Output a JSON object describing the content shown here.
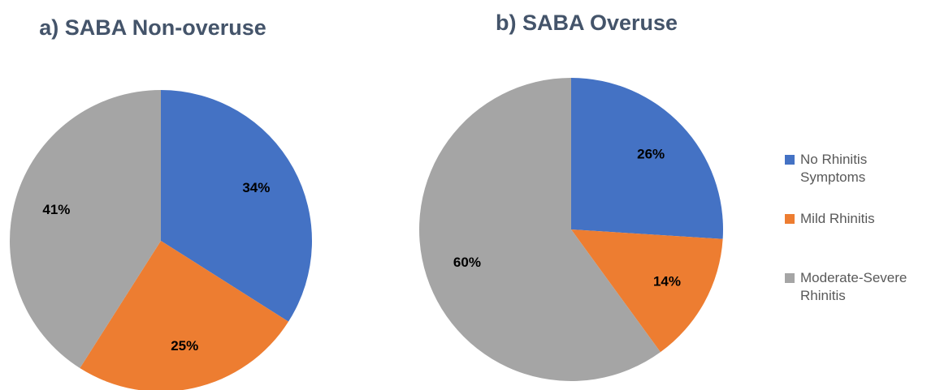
{
  "chart_data": [
    {
      "type": "pie",
      "title": "a) SABA Non-overuse",
      "categories": [
        "No Rhinitis Symptoms",
        "Mild Rhinitis",
        "Moderate-Severe Rhinitis"
      ],
      "values": [
        34,
        25,
        41
      ],
      "value_labels": [
        "34%",
        "25%",
        "41%"
      ],
      "colors": [
        "#4472c4",
        "#ed7d31",
        "#a5a5a5"
      ]
    },
    {
      "type": "pie",
      "title": "b) SABA Overuse",
      "categories": [
        "No Rhinitis Symptoms",
        "Mild Rhinitis",
        "Moderate-Severe Rhinitis"
      ],
      "values": [
        26,
        14,
        60
      ],
      "value_labels": [
        "26%",
        "14%",
        "60%"
      ],
      "colors": [
        "#4472c4",
        "#ed7d31",
        "#a5a5a5"
      ],
      "legend": "right"
    }
  ]
}
